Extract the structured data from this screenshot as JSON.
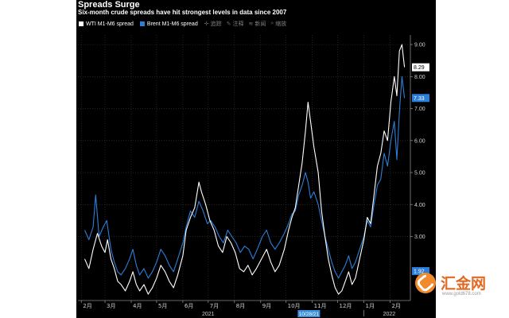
{
  "chart_data": {
    "type": "line",
    "title": "Spreads Surge",
    "subtitle": "Six-month crude spreads have hit strongest levels in data since 2007",
    "series": [
      {
        "name": "WTI M1-M6 spread",
        "color": "#ffffff",
        "last_value": "8.29",
        "points": [
          [
            "2021-02-05",
            2.3
          ],
          [
            "2021-02-10",
            2.0
          ],
          [
            "2021-02-15",
            2.6
          ],
          [
            "2021-02-20",
            3.1
          ],
          [
            "2021-02-25",
            2.7
          ],
          [
            "2021-03-01",
            2.5
          ],
          [
            "2021-03-04",
            2.9
          ],
          [
            "2021-03-08",
            2.3
          ],
          [
            "2021-03-12",
            2.0
          ],
          [
            "2021-03-16",
            1.6
          ],
          [
            "2021-03-20",
            1.5
          ],
          [
            "2021-03-25",
            1.3
          ],
          [
            "2021-03-30",
            1.6
          ],
          [
            "2021-04-03",
            1.9
          ],
          [
            "2021-04-07",
            1.5
          ],
          [
            "2021-04-11",
            1.3
          ],
          [
            "2021-04-16",
            1.5
          ],
          [
            "2021-04-21",
            1.2
          ],
          [
            "2021-04-26",
            1.4
          ],
          [
            "2021-05-01",
            1.7
          ],
          [
            "2021-05-06",
            2.1
          ],
          [
            "2021-05-11",
            1.9
          ],
          [
            "2021-05-16",
            1.6
          ],
          [
            "2021-05-21",
            1.4
          ],
          [
            "2021-05-26",
            1.8
          ],
          [
            "2021-06-01",
            2.4
          ],
          [
            "2021-06-05",
            3.2
          ],
          [
            "2021-06-10",
            3.6
          ],
          [
            "2021-06-15",
            3.9
          ],
          [
            "2021-06-20",
            4.7
          ],
          [
            "2021-06-23",
            4.4
          ],
          [
            "2021-06-28",
            4.0
          ],
          [
            "2021-07-03",
            3.5
          ],
          [
            "2021-07-08",
            3.2
          ],
          [
            "2021-07-13",
            2.7
          ],
          [
            "2021-07-18",
            2.5
          ],
          [
            "2021-07-23",
            3.0
          ],
          [
            "2021-07-28",
            2.8
          ],
          [
            "2021-08-02",
            2.5
          ],
          [
            "2021-08-07",
            2.0
          ],
          [
            "2021-08-12",
            1.9
          ],
          [
            "2021-08-17",
            2.1
          ],
          [
            "2021-08-22",
            1.8
          ],
          [
            "2021-08-27",
            2.0
          ],
          [
            "2021-09-02",
            2.3
          ],
          [
            "2021-09-08",
            2.6
          ],
          [
            "2021-09-13",
            2.2
          ],
          [
            "2021-09-18",
            1.9
          ],
          [
            "2021-09-23",
            2.1
          ],
          [
            "2021-09-29",
            2.6
          ],
          [
            "2021-10-04",
            3.2
          ],
          [
            "2021-10-08",
            3.6
          ],
          [
            "2021-10-12",
            3.9
          ],
          [
            "2021-10-16",
            4.6
          ],
          [
            "2021-10-20",
            5.3
          ],
          [
            "2021-10-24",
            6.3
          ],
          [
            "2021-10-27",
            7.2
          ],
          [
            "2021-10-30",
            6.6
          ],
          [
            "2021-11-03",
            5.8
          ],
          [
            "2021-11-08",
            5.0
          ],
          [
            "2021-11-12",
            3.8
          ],
          [
            "2021-11-16",
            3.0
          ],
          [
            "2021-11-20",
            2.3
          ],
          [
            "2021-11-24",
            1.8
          ],
          [
            "2021-11-28",
            1.4
          ],
          [
            "2021-12-02",
            1.2
          ],
          [
            "2021-12-06",
            1.3
          ],
          [
            "2021-12-10",
            1.6
          ],
          [
            "2021-12-14",
            1.9
          ],
          [
            "2021-12-18",
            1.5
          ],
          [
            "2021-12-22",
            1.7
          ],
          [
            "2021-12-27",
            2.3
          ],
          [
            "2022-01-01",
            2.9
          ],
          [
            "2022-01-05",
            3.6
          ],
          [
            "2022-01-09",
            3.4
          ],
          [
            "2022-01-13",
            4.3
          ],
          [
            "2022-01-17",
            5.2
          ],
          [
            "2022-01-21",
            5.6
          ],
          [
            "2022-01-25",
            6.3
          ],
          [
            "2022-01-29",
            6.0
          ],
          [
            "2022-02-02",
            7.2
          ],
          [
            "2022-02-06",
            8.0
          ],
          [
            "2022-02-09",
            7.4
          ],
          [
            "2022-02-12",
            8.8
          ],
          [
            "2022-02-15",
            9.0
          ],
          [
            "2022-02-18",
            8.29
          ]
        ]
      },
      {
        "name": "Brent M1-M6 spread",
        "color": "#2b7fd8",
        "last_value": "7.33",
        "points": [
          [
            "2021-02-05",
            3.2
          ],
          [
            "2021-02-10",
            2.9
          ],
          [
            "2021-02-15",
            3.3
          ],
          [
            "2021-02-18",
            4.3
          ],
          [
            "2021-02-22",
            3.0
          ],
          [
            "2021-02-27",
            3.3
          ],
          [
            "2021-03-03",
            3.5
          ],
          [
            "2021-03-08",
            2.6
          ],
          [
            "2021-03-12",
            2.2
          ],
          [
            "2021-03-16",
            1.9
          ],
          [
            "2021-03-20",
            1.8
          ],
          [
            "2021-03-25",
            2.0
          ],
          [
            "2021-03-30",
            2.3
          ],
          [
            "2021-04-03",
            2.6
          ],
          [
            "2021-04-07",
            2.1
          ],
          [
            "2021-04-11",
            1.8
          ],
          [
            "2021-04-16",
            2.0
          ],
          [
            "2021-04-21",
            1.7
          ],
          [
            "2021-04-26",
            1.9
          ],
          [
            "2021-05-01",
            2.2
          ],
          [
            "2021-05-06",
            2.6
          ],
          [
            "2021-05-11",
            2.4
          ],
          [
            "2021-05-16",
            2.1
          ],
          [
            "2021-05-21",
            1.9
          ],
          [
            "2021-05-26",
            2.3
          ],
          [
            "2021-06-01",
            2.8
          ],
          [
            "2021-06-05",
            3.3
          ],
          [
            "2021-06-10",
            3.8
          ],
          [
            "2021-06-15",
            3.6
          ],
          [
            "2021-06-20",
            4.1
          ],
          [
            "2021-06-25",
            3.8
          ],
          [
            "2021-06-30",
            3.4
          ],
          [
            "2021-07-04",
            3.5
          ],
          [
            "2021-07-09",
            3.3
          ],
          [
            "2021-07-14",
            3.0
          ],
          [
            "2021-07-19",
            2.8
          ],
          [
            "2021-07-24",
            3.2
          ],
          [
            "2021-07-29",
            3.0
          ],
          [
            "2021-08-03",
            2.8
          ],
          [
            "2021-08-08",
            2.5
          ],
          [
            "2021-08-13",
            2.7
          ],
          [
            "2021-08-18",
            2.6
          ],
          [
            "2021-08-23",
            2.3
          ],
          [
            "2021-08-28",
            2.6
          ],
          [
            "2021-09-03",
            3.0
          ],
          [
            "2021-09-08",
            3.2
          ],
          [
            "2021-09-13",
            2.8
          ],
          [
            "2021-09-18",
            2.6
          ],
          [
            "2021-09-23",
            2.8
          ],
          [
            "2021-09-29",
            3.1
          ],
          [
            "2021-10-04",
            3.4
          ],
          [
            "2021-10-08",
            3.7
          ],
          [
            "2021-10-12",
            3.8
          ],
          [
            "2021-10-16",
            4.3
          ],
          [
            "2021-10-20",
            4.6
          ],
          [
            "2021-10-24",
            5.0
          ],
          [
            "2021-10-27",
            4.7
          ],
          [
            "2021-10-30",
            4.2
          ],
          [
            "2021-11-03",
            4.4
          ],
          [
            "2021-11-08",
            4.0
          ],
          [
            "2021-11-12",
            3.5
          ],
          [
            "2021-11-16",
            3.0
          ],
          [
            "2021-11-20",
            2.6
          ],
          [
            "2021-11-24",
            2.2
          ],
          [
            "2021-11-28",
            1.9
          ],
          [
            "2021-12-02",
            1.7
          ],
          [
            "2021-12-06",
            1.9
          ],
          [
            "2021-12-10",
            2.1
          ],
          [
            "2021-12-14",
            2.4
          ],
          [
            "2021-12-18",
            2.0
          ],
          [
            "2021-12-22",
            2.2
          ],
          [
            "2021-12-27",
            2.6
          ],
          [
            "2022-01-01",
            3.0
          ],
          [
            "2022-01-05",
            3.5
          ],
          [
            "2022-01-09",
            3.3
          ],
          [
            "2022-01-13",
            4.0
          ],
          [
            "2022-01-17",
            4.6
          ],
          [
            "2022-01-21",
            4.8
          ],
          [
            "2022-01-25",
            5.6
          ],
          [
            "2022-01-29",
            5.2
          ],
          [
            "2022-02-02",
            6.0
          ],
          [
            "2022-02-06",
            6.6
          ],
          [
            "2022-02-09",
            5.4
          ],
          [
            "2022-02-12",
            6.9
          ],
          [
            "2022-02-15",
            8.0
          ],
          [
            "2022-02-18",
            7.33
          ]
        ]
      }
    ],
    "y_ticks": [
      "3.00",
      "4.00",
      "5.00",
      "6.00",
      "7.00",
      "8.00",
      "9.00"
    ],
    "ylim": [
      1.0,
      9.3
    ],
    "xlim": [
      "2021-01-28",
      "2022-02-25"
    ],
    "x_month_ticks": [
      {
        "date": "2021-02-01",
        "label": "2月"
      },
      {
        "date": "2021-03-01",
        "label": "3月"
      },
      {
        "date": "2021-04-01",
        "label": "4月"
      },
      {
        "date": "2021-05-01",
        "label": "5月"
      },
      {
        "date": "2021-06-01",
        "label": "6月"
      },
      {
        "date": "2021-07-01",
        "label": "7月"
      },
      {
        "date": "2021-08-01",
        "label": "8月"
      },
      {
        "date": "2021-09-01",
        "label": "9月"
      },
      {
        "date": "2021-10-01",
        "label": "10月"
      },
      {
        "date": "2021-11-01",
        "label": "11月"
      },
      {
        "date": "2021-12-01",
        "label": "12月"
      },
      {
        "date": "2022-01-01",
        "label": "1月"
      },
      {
        "date": "2022-02-01",
        "label": "2月"
      }
    ],
    "x_year_labels": [
      {
        "date": "2021-07-01",
        "label": "2021"
      },
      {
        "date": "2022-01-31",
        "label": "2022"
      }
    ],
    "crosshair": {
      "date": "2021-10-28",
      "label": "10/28/21"
    },
    "other_badge": "1.92",
    "grid": true,
    "legend_position": "top-left"
  },
  "toolbar": {
    "items": [
      {
        "label": "追踪",
        "icon": "crosshair-icon"
      },
      {
        "label": "注释",
        "icon": "pencil-icon"
      },
      {
        "label": "新闻",
        "icon": "news-icon"
      },
      {
        "label": "缩放",
        "icon": "zoom-icon"
      }
    ]
  },
  "watermark": {
    "name": "汇金网",
    "url": "www.gold678.com"
  }
}
